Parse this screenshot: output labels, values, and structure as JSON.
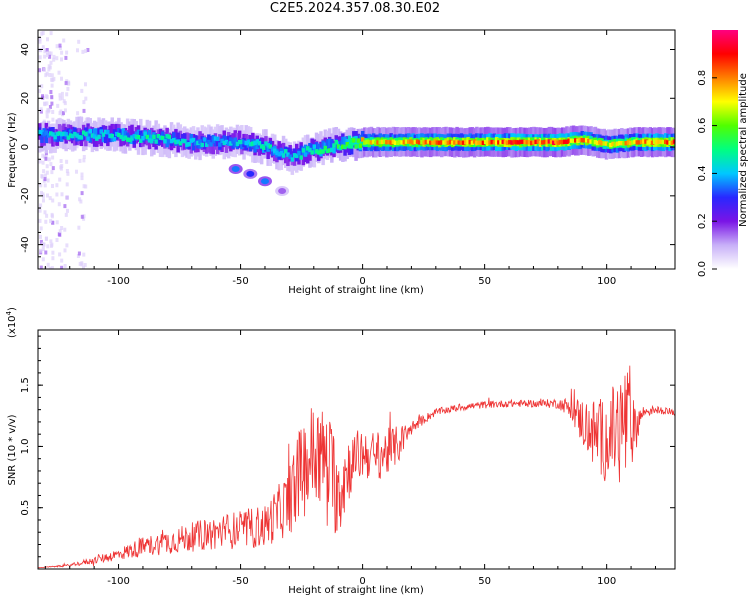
{
  "title": "C2E5.2024.357.08.30.E02",
  "colors": {
    "snr_line": "#ee3333",
    "background": "#ffffff",
    "axis": "#000000"
  },
  "chart_data": [
    {
      "type": "heatmap",
      "xlabel": "Height of straight line (km)",
      "ylabel": "Frequency (Hz)",
      "xlim": [
        -133,
        128
      ],
      "ylim": [
        -50,
        48
      ],
      "xticks": [
        -100,
        -50,
        0,
        50,
        100
      ],
      "yticks": [
        -40,
        -20,
        0,
        20,
        40
      ],
      "grid": false,
      "colorbar": {
        "label": "Normalized spectral amplitude",
        "range": [
          0.0,
          1.0
        ],
        "ticks": [
          0.0,
          0.2,
          0.4,
          0.6,
          0.8
        ],
        "tick_labels": [
          "0.0",
          "0.2",
          "0.4",
          "0.6",
          "0.8"
        ],
        "colormap": [
          "#ffffff",
          "#c8b0f8",
          "#7a14e6",
          "#2828ff",
          "#00c8ff",
          "#00ff80",
          "#50ff00",
          "#ffff00",
          "#ff8000",
          "#ff0000",
          "#ff0080"
        ]
      },
      "ridge": {
        "x": [
          -130,
          -110,
          -90,
          -70,
          -50,
          -40,
          -30,
          -20,
          -10,
          0,
          20,
          50,
          80,
          90,
          100,
          110,
          127
        ],
        "frequency": [
          5,
          5,
          4,
          2,
          2,
          0,
          -4,
          -1,
          1,
          2,
          2,
          2,
          2,
          3,
          1,
          2,
          2
        ],
        "amplitude": [
          0.4,
          0.45,
          0.45,
          0.4,
          0.4,
          0.45,
          0.4,
          0.45,
          0.5,
          0.7,
          0.75,
          0.8,
          0.85,
          0.75,
          0.65,
          0.75,
          0.8
        ]
      },
      "secondary_feature": {
        "x": [
          -52,
          -46,
          -40,
          -33
        ],
        "frequency": [
          -9,
          -11,
          -14,
          -18
        ],
        "amplitude": [
          0.35,
          0.3,
          0.35,
          0.15
        ]
      }
    },
    {
      "type": "line",
      "xlabel": "Height of straight line (km)",
      "ylabel": "SNR (10 * v/v)",
      "scale_label": "(x10",
      "scale_exponent": "4",
      "xlim": [
        -133,
        128
      ],
      "ylim": [
        0,
        1.95
      ],
      "xticks": [
        -100,
        -50,
        0,
        50,
        100
      ],
      "yticks": [
        0.5,
        1.0,
        1.5
      ],
      "ytick_labels": [
        "0.5",
        "1.0",
        "1.5"
      ],
      "grid": false,
      "series": [
        {
          "x": [
            -133,
            -120,
            -110,
            -100,
            -90,
            -80,
            -70,
            -60,
            -50,
            -40,
            -35,
            -30,
            -25,
            -20,
            -15,
            -10,
            -5,
            0,
            5,
            10,
            15,
            20,
            25,
            30,
            40,
            50,
            60,
            70,
            80,
            85,
            90,
            95,
            100,
            105,
            108,
            110,
            115,
            120,
            128
          ],
          "y": [
            0.01,
            0.03,
            0.07,
            0.12,
            0.18,
            0.22,
            0.26,
            0.3,
            0.32,
            0.35,
            0.45,
            0.55,
            0.8,
            0.95,
            0.9,
            0.65,
            0.85,
            0.95,
            0.92,
            0.95,
            1.02,
            1.15,
            1.22,
            1.28,
            1.32,
            1.34,
            1.35,
            1.35,
            1.35,
            1.32,
            1.2,
            1.1,
            1.05,
            1.15,
            1.2,
            1.1,
            1.28,
            1.3,
            1.28
          ],
          "noise_amp": [
            0.0,
            0.01,
            0.03,
            0.05,
            0.08,
            0.1,
            0.12,
            0.14,
            0.16,
            0.18,
            0.22,
            0.28,
            0.4,
            0.45,
            0.4,
            0.45,
            0.25,
            0.22,
            0.2,
            0.2,
            0.15,
            0.06,
            0.04,
            0.03,
            0.03,
            0.03,
            0.03,
            0.03,
            0.04,
            0.08,
            0.2,
            0.3,
            0.35,
            0.45,
            0.55,
            0.3,
            0.05,
            0.03,
            0.03
          ]
        }
      ]
    }
  ]
}
